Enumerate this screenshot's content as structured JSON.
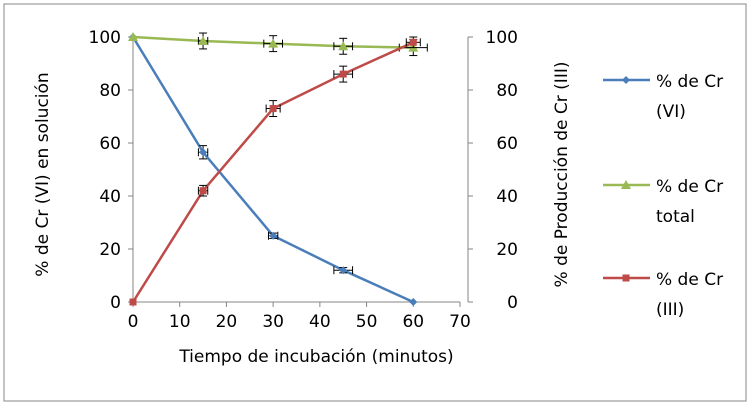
{
  "chart_data": {
    "type": "line",
    "xlabel": "Tiempo de incubación (minutos)",
    "ylabel": "% de Cr (VI) en solución",
    "y2label": "% de Producción de Cr (III)",
    "xlim": [
      0,
      70
    ],
    "ylim": [
      0,
      100
    ],
    "y2lim": [
      0,
      100
    ],
    "xticks": [
      "0",
      "10",
      "20",
      "30",
      "40",
      "50",
      "60",
      "70"
    ],
    "yticks": [
      "0",
      "20",
      "40",
      "60",
      "80",
      "100"
    ],
    "y2ticks": [
      "0",
      "20",
      "40",
      "60",
      "80",
      "100"
    ],
    "grid": false,
    "legend_position": "right",
    "series": [
      {
        "name_lines": [
          "% de Cr",
          "(VI)"
        ],
        "color": "#4a7ebb",
        "marker": "diamond",
        "points": [
          {
            "x": 0,
            "y": 100,
            "xerr": 0,
            "yerr": 0
          },
          {
            "x": 15,
            "y": 56.5,
            "xerr": 1,
            "yerr": 2.5
          },
          {
            "x": 30,
            "y": 25,
            "xerr": 1,
            "yerr": 1
          },
          {
            "x": 45,
            "y": 12,
            "xerr": 2,
            "yerr": 1
          },
          {
            "x": 60,
            "y": 0,
            "xerr": 0,
            "yerr": 0
          }
        ]
      },
      {
        "name_lines": [
          "% de Cr",
          "total"
        ],
        "color": "#98b954",
        "marker": "triangle",
        "points": [
          {
            "x": 0,
            "y": 100,
            "xerr": 0,
            "yerr": 0
          },
          {
            "x": 15,
            "y": 98.5,
            "xerr": 1,
            "yerr": 3
          },
          {
            "x": 30,
            "y": 97.5,
            "xerr": 2,
            "yerr": 3
          },
          {
            "x": 45,
            "y": 96.5,
            "xerr": 2,
            "yerr": 3
          },
          {
            "x": 60,
            "y": 96,
            "xerr": 3,
            "yerr": 3
          }
        ]
      },
      {
        "name_lines": [
          "% de Cr",
          "(III)"
        ],
        "color": "#be4b48",
        "marker": "square",
        "points": [
          {
            "x": 0,
            "y": 0,
            "xerr": 0,
            "yerr": 0
          },
          {
            "x": 15,
            "y": 42,
            "xerr": 1,
            "yerr": 2
          },
          {
            "x": 30,
            "y": 73,
            "xerr": 1.5,
            "yerr": 3
          },
          {
            "x": 45,
            "y": 86,
            "xerr": 2,
            "yerr": 3
          },
          {
            "x": 60,
            "y": 98,
            "xerr": 1.5,
            "yerr": 2
          }
        ]
      }
    ]
  }
}
